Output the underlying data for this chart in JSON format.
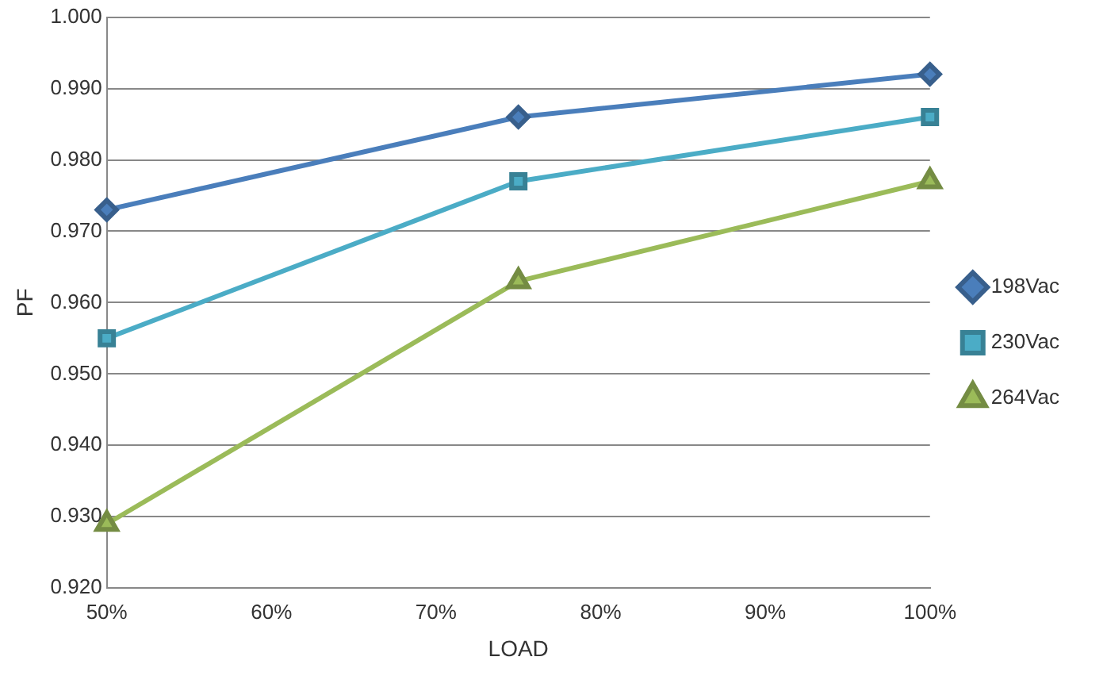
{
  "chart_data": {
    "type": "line",
    "xlabel": "LOAD",
    "ylabel": "PF",
    "x": [
      50,
      75,
      100
    ],
    "series": [
      {
        "name": "198Vac",
        "color": "#4a7ebb",
        "marker": "diamond",
        "values": [
          0.973,
          0.986,
          0.992
        ]
      },
      {
        "name": "230Vac",
        "color": "#4bacc6",
        "marker": "square",
        "values": [
          0.955,
          0.977,
          0.986
        ]
      },
      {
        "name": "264Vac",
        "color": "#9bbb59",
        "marker": "triangle",
        "values": [
          0.929,
          0.963,
          0.977
        ]
      }
    ],
    "xlim": [
      50,
      100
    ],
    "xticks": [
      {
        "value": 50,
        "label": "50%"
      },
      {
        "value": 60,
        "label": "60%"
      },
      {
        "value": 70,
        "label": "70%"
      },
      {
        "value": 80,
        "label": "80%"
      },
      {
        "value": 90,
        "label": "90%"
      },
      {
        "value": 100,
        "label": "100%"
      }
    ],
    "ylim": [
      0.92,
      1.0
    ],
    "yticks": [
      {
        "value": 0.92,
        "label": "0.920"
      },
      {
        "value": 0.93,
        "label": "0.930"
      },
      {
        "value": 0.94,
        "label": "0.940"
      },
      {
        "value": 0.95,
        "label": "0.950"
      },
      {
        "value": 0.96,
        "label": "0.960"
      },
      {
        "value": 0.97,
        "label": "0.970"
      },
      {
        "value": 0.98,
        "label": "0.980"
      },
      {
        "value": 0.99,
        "label": "0.990"
      },
      {
        "value": 1.0,
        "label": "1.000"
      }
    ],
    "grid": "y",
    "legend": "right",
    "line_style": "solid"
  }
}
